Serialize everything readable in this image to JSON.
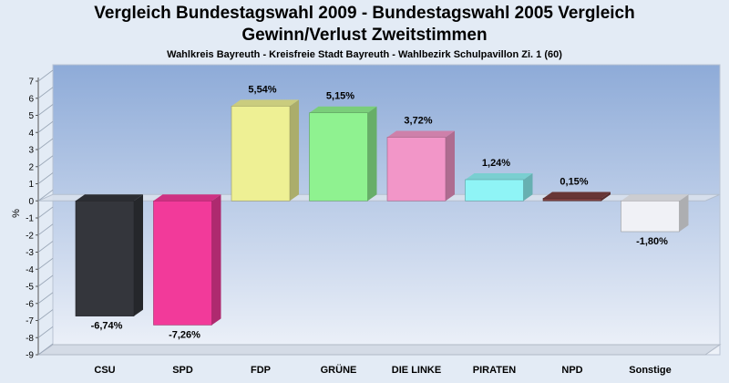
{
  "chart_data": {
    "type": "bar",
    "title": "Vergleich Bundestagswahl 2009 - Bundestagswahl 2005 Vergleich",
    "title2": "Gewinn/Verlust Zweitstimmen",
    "subtitle": "Wahlkreis Bayreuth - Kreisfreie Stadt Bayreuth - Wahlbezirk Schulpavillon Zi. 1 (60)",
    "ylabel": "%",
    "ylim": [
      -9,
      7
    ],
    "yticks": [
      7,
      6,
      5,
      4,
      3,
      2,
      1,
      0,
      -1,
      -2,
      -3,
      -4,
      -5,
      -6,
      -7,
      -8,
      -9
    ],
    "grid": false,
    "categories": [
      "CSU",
      "SPD",
      "FDP",
      "GRÜNE",
      "DIE LINKE",
      "PIRATEN",
      "NPD",
      "Sonstige"
    ],
    "values": [
      -6.74,
      -7.26,
      5.54,
      5.15,
      3.72,
      1.24,
      0.15,
      -1.8
    ],
    "value_labels": [
      "-6,74%",
      "-7,26%",
      "5,54%",
      "5,15%",
      "3,72%",
      "1,24%",
      "0,15%",
      "-1,80%"
    ],
    "colors": [
      "#34363c",
      "#f23a9a",
      "#eef094",
      "#8ff290",
      "#f296c8",
      "#8ff4f6",
      "#7a3f3f",
      "#f0f1f6"
    ]
  }
}
